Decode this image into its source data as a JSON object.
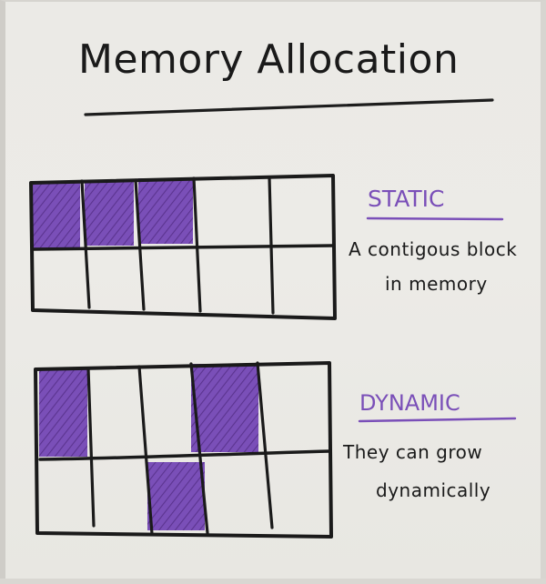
{
  "title": "Memory Allocation",
  "static": {
    "heading": "STATIC",
    "description_line1": "A contigous block",
    "description_line2": "in memory"
  },
  "dynamic": {
    "heading": "DYNAMIC",
    "description_line1": "They can grow",
    "description_line2": "dynamically"
  },
  "colors": {
    "ink": "#1a1a1a",
    "accent": "#7a4fb8"
  }
}
